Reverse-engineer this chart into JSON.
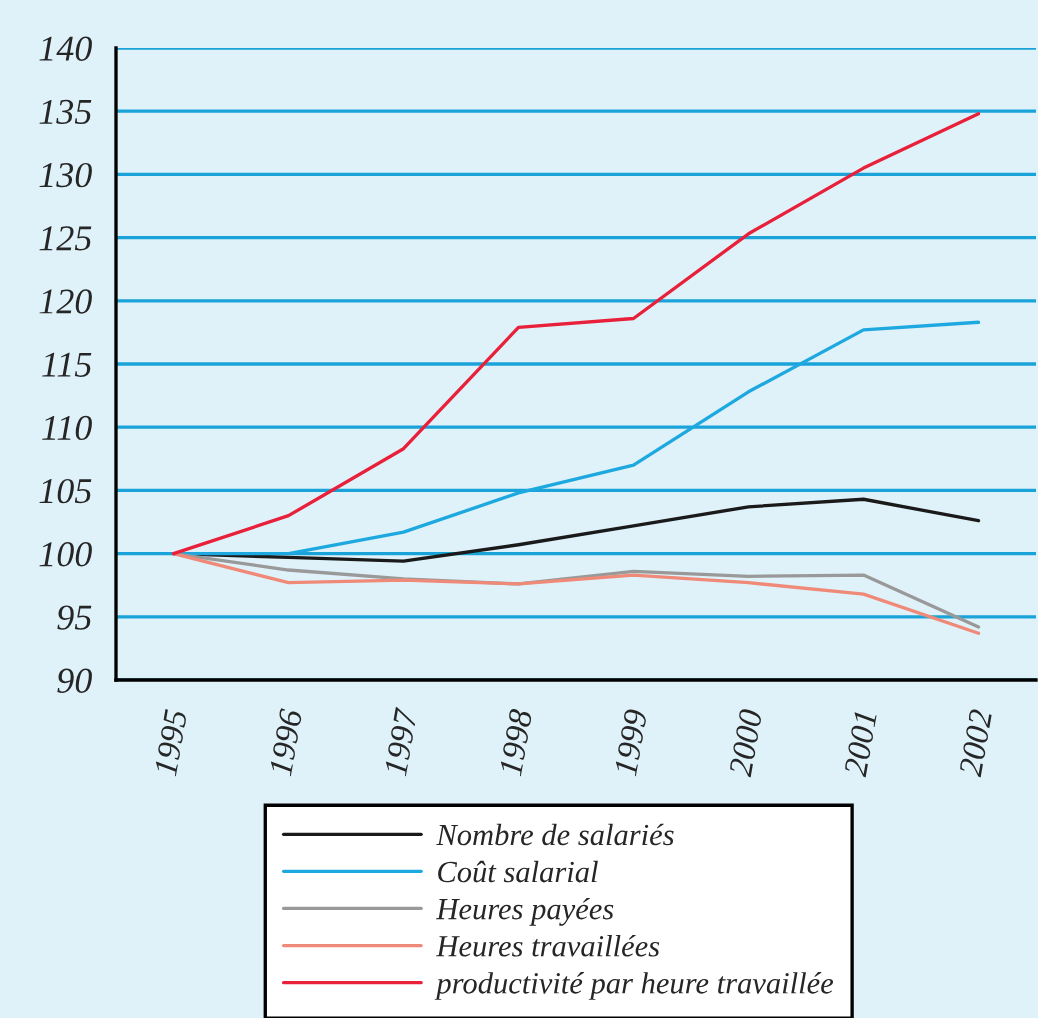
{
  "chart_data": {
    "type": "line",
    "categories": [
      "1995",
      "1996",
      "1997",
      "1998",
      "1999",
      "2000",
      "2001",
      "2002"
    ],
    "series": [
      {
        "name": "Nombre de salariés",
        "color": "#1a1a1a",
        "values": [
          100,
          99.7,
          99.4,
          100.7,
          102.2,
          103.7,
          104.3,
          102.6
        ]
      },
      {
        "name": "Coût salarial",
        "color": "#1ea8e0",
        "values": [
          100,
          100,
          101.7,
          104.8,
          107,
          112.8,
          117.7,
          118.3
        ]
      },
      {
        "name": "Heures payées",
        "color": "#999999",
        "values": [
          100,
          98.7,
          98,
          97.6,
          98.6,
          98.2,
          98.3,
          94.2
        ]
      },
      {
        "name": "Heures travaillées",
        "color": "#f08a78",
        "values": [
          100,
          97.7,
          97.9,
          97.6,
          98.3,
          97.7,
          96.8,
          93.7
        ]
      },
      {
        "name": "productivité par heure travaillée",
        "color": "#e8203a",
        "values": [
          100,
          103,
          108.3,
          117.9,
          118.6,
          125.3,
          130.5,
          134.8
        ]
      }
    ],
    "ylim": [
      90,
      140
    ],
    "yticks": [
      90,
      95,
      100,
      105,
      110,
      115,
      120,
      125,
      130,
      135,
      140
    ],
    "grid": "y",
    "legend": "bottom",
    "marker": "none",
    "line_style": "solid"
  }
}
